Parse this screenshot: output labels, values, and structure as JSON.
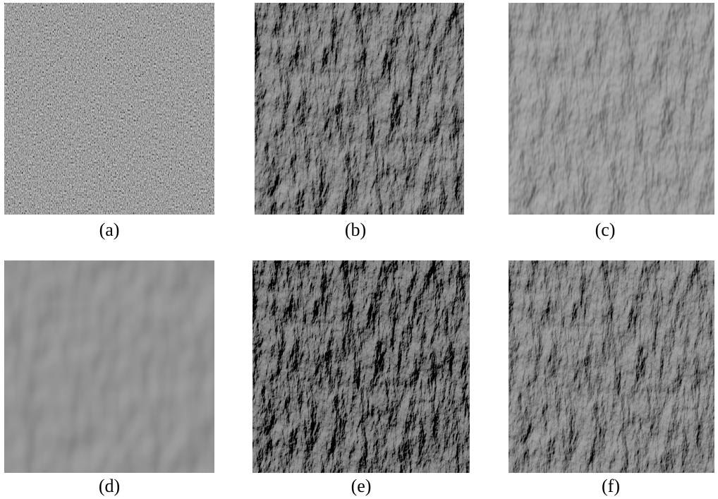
{
  "figure": {
    "panels": [
      {
        "caption": "(a)",
        "texture": "speckle-noise"
      },
      {
        "caption": "(b)",
        "texture": "rough-terrain"
      },
      {
        "caption": "(c)",
        "texture": "smooth-terrain"
      },
      {
        "caption": "(d)",
        "texture": "blocky-patches"
      },
      {
        "caption": "(e)",
        "texture": "rough-terrain-fine"
      },
      {
        "caption": "(f)",
        "texture": "rough-terrain-mixed"
      }
    ]
  }
}
